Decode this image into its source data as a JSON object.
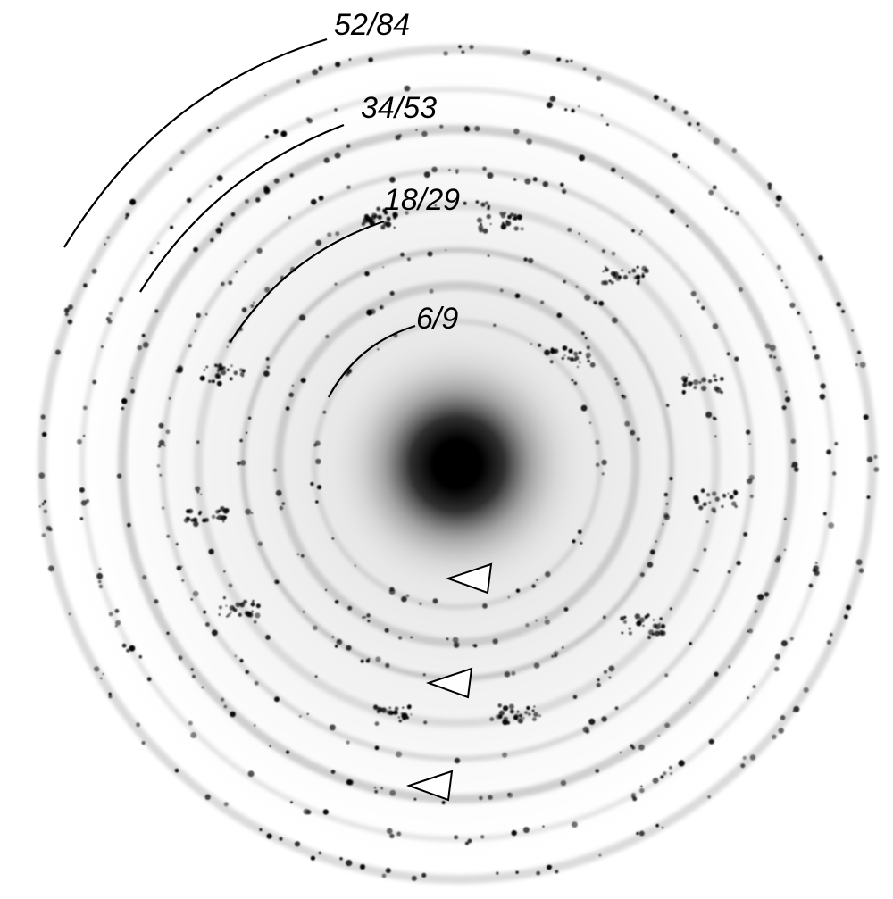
{
  "ring_labels": [
    {
      "id": "r1",
      "text": "6/9"
    },
    {
      "id": "r2",
      "text": "18/29"
    },
    {
      "id": "r3",
      "text": "34/53"
    },
    {
      "id": "r4",
      "text": "52/84"
    }
  ],
  "arrowheads": 3,
  "colors": {
    "background": "#ffffff",
    "spot": "#000000",
    "arrow_fill": "#ffffff",
    "arrow_stroke": "#000000"
  }
}
